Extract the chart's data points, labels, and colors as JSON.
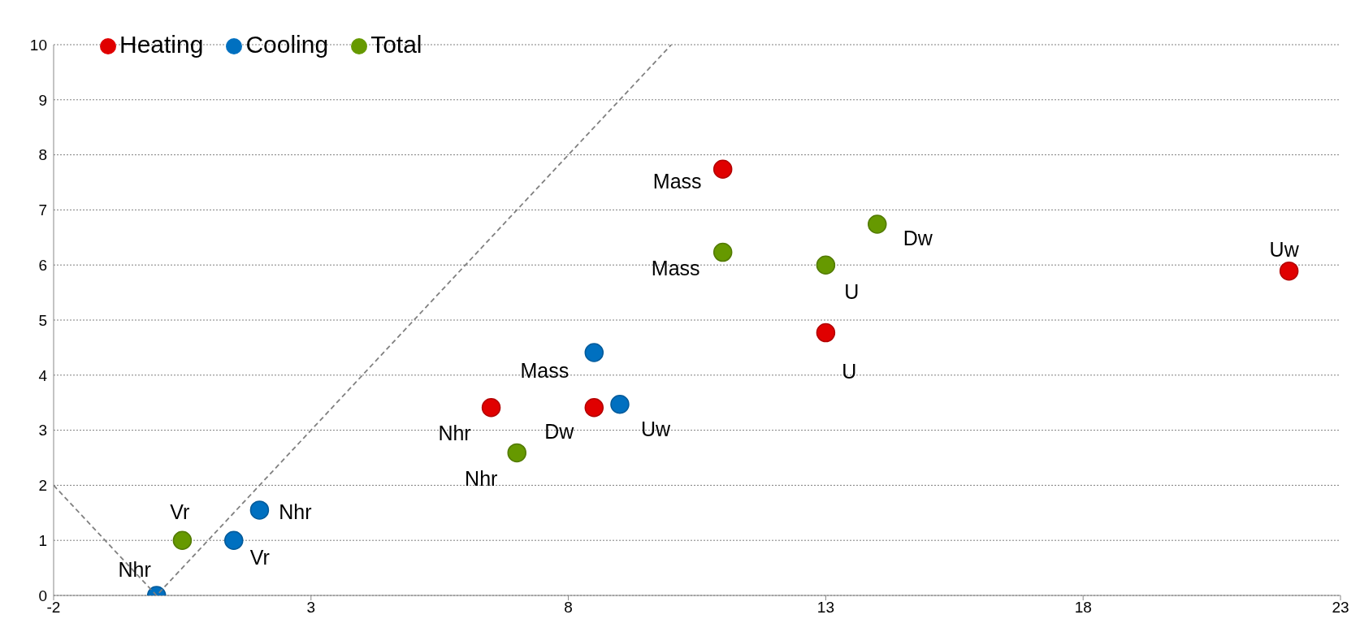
{
  "chart_data": {
    "type": "scatter",
    "xlim": [
      -2,
      23
    ],
    "xticks": [
      -2,
      3,
      8,
      13,
      18,
      23
    ],
    "ylim": [
      0,
      10
    ],
    "yticks": [
      0,
      1,
      2,
      3,
      4,
      5,
      6,
      7,
      8,
      9,
      10
    ],
    "grid": "y",
    "legend": "top left",
    "marker": "circle",
    "series": [
      {
        "name": "Heating",
        "color": "#e00000",
        "x": [
          11,
          13,
          22,
          6.5,
          8.5
        ],
        "values": [
          7.74,
          4.77,
          5.89,
          3.41,
          3.41
        ]
      },
      {
        "name": "Cooling",
        "color": "#0070c0",
        "x": [
          8.5,
          9,
          2,
          1.5,
          0
        ],
        "values": [
          4.41,
          3.47,
          1.55,
          1,
          0
        ]
      },
      {
        "name": "Total",
        "color": "#669900",
        "x": [
          11,
          13,
          14,
          7,
          0.5
        ],
        "values": [
          6.23,
          6,
          6.74,
          2.59,
          1
        ]
      },
      {
        "type": "line",
        "color": "#808080",
        "line_style": "dashed",
        "marker": "none",
        "x": [
          -2,
          0,
          10
        ],
        "values": [
          2,
          0,
          10
        ]
      }
    ],
    "annotations": [
      {
        "text": "Mass",
        "x": 11,
        "y": 7.74
      },
      {
        "text": "U",
        "x": 13,
        "y": 4.77
      },
      {
        "text": "Uw",
        "x": 22,
        "y": 5.89
      },
      {
        "text": "Nhr",
        "x": 6.5,
        "y": 3.41
      },
      {
        "text": "Dw",
        "x": 8.5,
        "y": 3.41
      },
      {
        "text": "Mass",
        "x": 8.5,
        "y": 4.41
      },
      {
        "text": "Uw",
        "x": 9,
        "y": 3.47
      },
      {
        "text": "Nhr",
        "x": 2,
        "y": 1.55
      },
      {
        "text": "Vr",
        "x": 1.5,
        "y": 1
      },
      {
        "text": "Nhr",
        "x": 0,
        "y": 0
      },
      {
        "text": "Mass",
        "x": 11,
        "y": 6.23
      },
      {
        "text": "U",
        "x": 13,
        "y": 6
      },
      {
        "text": "Dw",
        "x": 14,
        "y": 6.74
      },
      {
        "text": "Nhr",
        "x": 7,
        "y": 2.59
      },
      {
        "text": "Vr",
        "x": 0.5,
        "y": 1
      }
    ]
  }
}
